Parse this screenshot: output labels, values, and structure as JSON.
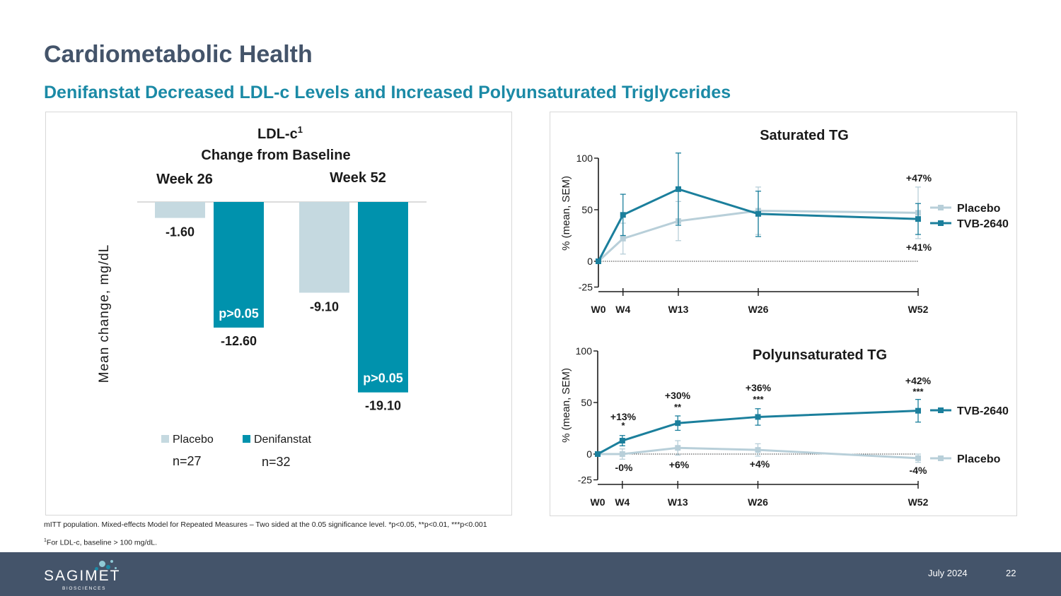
{
  "slide": {
    "title": "Cardiometabolic Health",
    "subtitle": "Denifanstat Decreased LDL-c Levels and Increased Polyunsaturated Triglycerides"
  },
  "colors": {
    "placebo_bar": "#c5d9e0",
    "drug_bar": "#0092ad",
    "placebo_line": "#b8cfd9",
    "drug_line": "#1b7f9c",
    "title": "#44546a",
    "subtitle": "#1b8aa6",
    "footer_bg": "#44546a"
  },
  "chart_data": [
    {
      "type": "bar",
      "title": "LDL-c",
      "title_sup": "1",
      "subtitle": "Change from Baseline",
      "ylabel": "Mean change, mg/dL",
      "groups": [
        "Week 26",
        "Week 52"
      ],
      "series": [
        {
          "name": "Placebo",
          "values": [
            -1.6,
            -9.1
          ],
          "labels": [
            "-1.60",
            "-9.10"
          ]
        },
        {
          "name": "Denifanstat",
          "values": [
            -12.6,
            -19.1
          ],
          "labels": [
            "-12.60",
            "-19.10"
          ]
        }
      ],
      "pvalue_labels": [
        "p>0.05",
        "p>0.05"
      ],
      "ylim": [
        -20,
        0
      ],
      "legend": [
        {
          "name": "Placebo",
          "n": "n=27"
        },
        {
          "name": "Denifanstat",
          "n": "n=32"
        }
      ]
    },
    {
      "type": "line",
      "title": "Saturated TG",
      "ylabel": "% (mean, SEM)",
      "ylim": [
        -25,
        100
      ],
      "yticks": [
        -25,
        0,
        50,
        100
      ],
      "x": [
        "W0",
        "W4",
        "W13",
        "W26",
        "W52"
      ],
      "x_weeks": [
        0,
        4,
        13,
        26,
        52
      ],
      "series": [
        {
          "name": "Placebo",
          "values": [
            0,
            22,
            39,
            49,
            47
          ],
          "sem": [
            0,
            15,
            19,
            23,
            25
          ],
          "end_label": "+47%"
        },
        {
          "name": "TVB-2640",
          "values": [
            0,
            45,
            70,
            46,
            41
          ],
          "sem": [
            0,
            20,
            35,
            22,
            15
          ],
          "end_label": "+41%"
        }
      ],
      "legend_order": [
        "Placebo",
        "TVB-2640"
      ]
    },
    {
      "type": "line",
      "title": "Polyunsaturated TG",
      "ylabel": "% (mean, SEM)",
      "ylim": [
        -25,
        100
      ],
      "yticks": [
        -25,
        0,
        50,
        100
      ],
      "x": [
        "W0",
        "W4",
        "W13",
        "W26",
        "W52"
      ],
      "x_weeks": [
        0,
        4,
        13,
        26,
        52
      ],
      "series": [
        {
          "name": "TVB-2640",
          "values": [
            0,
            13,
            30,
            36,
            42
          ],
          "sem": [
            0,
            5,
            7,
            8,
            11
          ],
          "point_labels": [
            "",
            "+13%",
            "+30%",
            "+36%",
            "+42%"
          ],
          "significance": [
            "",
            "*",
            "**",
            "***",
            "***"
          ]
        },
        {
          "name": "Placebo",
          "values": [
            0,
            0,
            6,
            4,
            -4
          ],
          "sem": [
            0,
            5,
            7,
            6,
            4
          ],
          "point_labels": [
            "",
            "-0%",
            "+6%",
            "+4%",
            "-4%"
          ]
        }
      ],
      "legend_order": [
        "TVB-2640",
        "Placebo"
      ]
    }
  ],
  "footnotes": {
    "line1": "mITT population. Mixed-effects Model for Repeated Measures – Two sided at the 0.05 significance level. *p<0.05, **p<0.01, ***p<0.001",
    "line2_sup": "1",
    "line2": "For LDL-c, baseline > 100 mg/dL."
  },
  "footer": {
    "logo_text": "SAGIMET",
    "logo_sub": "BIOSCIENCES",
    "date": "July 2024",
    "page": "22"
  }
}
